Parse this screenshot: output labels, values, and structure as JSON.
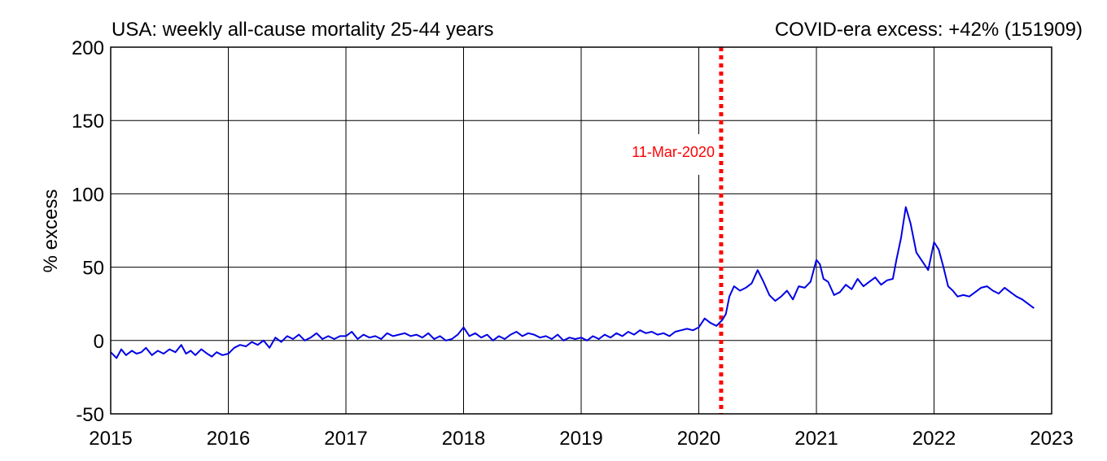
{
  "chart_data": {
    "type": "line",
    "title": "USA: weekly all-cause mortality 25-44 years",
    "subtitle": "COVID-era excess: +42% (151909)",
    "xlabel": "",
    "ylabel": "% excess",
    "xlim": [
      2015,
      2023
    ],
    "ylim": [
      -50,
      200
    ],
    "x_ticks": [
      "2015",
      "2016",
      "2017",
      "2018",
      "2019",
      "2020",
      "2021",
      "2022",
      "2023"
    ],
    "y_ticks": [
      "-50",
      "0",
      "50",
      "100",
      "150",
      "200"
    ],
    "grid": true,
    "legend": "none",
    "colors": {
      "series": "#0000e6",
      "marker": "#ff0000",
      "grid": "#000000"
    },
    "annotation": {
      "label": "11-Mar-2020",
      "x": 2020.19,
      "style": "dotted vertical line"
    },
    "series": [
      {
        "x": [
          2015.0,
          2015.05,
          2015.09,
          2015.13,
          2015.18,
          2015.22,
          2015.26,
          2015.3,
          2015.35,
          2015.4,
          2015.45,
          2015.5,
          2015.55,
          2015.6,
          2015.64,
          2015.68,
          2015.72,
          2015.77,
          2015.82,
          2015.86,
          2015.9,
          2015.95,
          2016.0,
          2016.05,
          2016.1,
          2016.15,
          2016.2,
          2016.25,
          2016.3,
          2016.35,
          2016.4,
          2016.45,
          2016.5,
          2016.55,
          2016.6,
          2016.65,
          2016.7,
          2016.75,
          2016.8,
          2016.85,
          2016.9,
          2016.95,
          2017.0,
          2017.05,
          2017.1,
          2017.15,
          2017.2,
          2017.25,
          2017.3,
          2017.35,
          2017.4,
          2017.45,
          2017.5,
          2017.55,
          2017.6,
          2017.65,
          2017.7,
          2017.75,
          2017.8,
          2017.85,
          2017.9,
          2017.95,
          2018.0,
          2018.05,
          2018.1,
          2018.15,
          2018.2,
          2018.25,
          2018.3,
          2018.35,
          2018.4,
          2018.45,
          2018.5,
          2018.55,
          2018.6,
          2018.65,
          2018.7,
          2018.75,
          2018.8,
          2018.85,
          2018.9,
          2018.95,
          2019.0,
          2019.05,
          2019.1,
          2019.15,
          2019.2,
          2019.25,
          2019.3,
          2019.35,
          2019.4,
          2019.45,
          2019.5,
          2019.55,
          2019.6,
          2019.65,
          2019.7,
          2019.75,
          2019.8,
          2019.85,
          2019.9,
          2019.95,
          2020.0,
          2020.05,
          2020.1,
          2020.15,
          2020.2,
          2020.23,
          2020.26,
          2020.3,
          2020.35,
          2020.4,
          2020.45,
          2020.5,
          2020.55,
          2020.6,
          2020.65,
          2020.7,
          2020.75,
          2020.8,
          2020.85,
          2020.9,
          2020.95,
          2021.0,
          2021.03,
          2021.06,
          2021.1,
          2021.15,
          2021.2,
          2021.25,
          2021.3,
          2021.35,
          2021.4,
          2021.45,
          2021.5,
          2021.55,
          2021.6,
          2021.65,
          2021.68,
          2021.72,
          2021.76,
          2021.8,
          2021.85,
          2021.9,
          2021.95,
          2022.0,
          2022.04,
          2022.08,
          2022.12,
          2022.16,
          2022.2,
          2022.25,
          2022.3,
          2022.35,
          2022.4,
          2022.45,
          2022.5,
          2022.55,
          2022.6,
          2022.65,
          2022.7,
          2022.75,
          2022.8,
          2022.85
        ],
        "values": [
          -8,
          -12,
          -6,
          -10,
          -7,
          -9,
          -8,
          -5,
          -10,
          -7,
          -9,
          -6,
          -8,
          -3,
          -9,
          -7,
          -10,
          -6,
          -9,
          -11,
          -8,
          -10,
          -9,
          -5,
          -3,
          -4,
          -1,
          -3,
          0,
          -5,
          2,
          -1,
          3,
          1,
          4,
          0,
          2,
          5,
          1,
          3,
          1,
          3,
          3,
          6,
          1,
          4,
          2,
          3,
          1,
          5,
          3,
          4,
          5,
          3,
          4,
          2,
          5,
          1,
          3,
          0,
          1,
          4,
          9,
          3,
          5,
          2,
          4,
          0,
          3,
          1,
          4,
          6,
          3,
          5,
          4,
          2,
          3,
          1,
          4,
          0,
          2,
          1,
          2,
          0,
          3,
          1,
          4,
          2,
          5,
          3,
          6,
          4,
          7,
          5,
          6,
          4,
          5,
          3,
          6,
          7,
          8,
          7,
          9,
          15,
          12,
          10,
          14,
          18,
          30,
          37,
          34,
          36,
          39,
          48,
          40,
          31,
          27,
          30,
          34,
          28,
          37,
          36,
          40,
          55,
          52,
          42,
          40,
          31,
          33,
          38,
          35,
          42,
          37,
          40,
          43,
          38,
          41,
          42,
          55,
          70,
          91,
          80,
          60,
          54,
          48,
          67,
          62,
          50,
          37,
          34,
          30,
          31,
          30,
          33,
          36,
          37,
          34,
          32,
          36,
          33,
          30,
          28,
          25,
          22
        ]
      }
    ]
  }
}
